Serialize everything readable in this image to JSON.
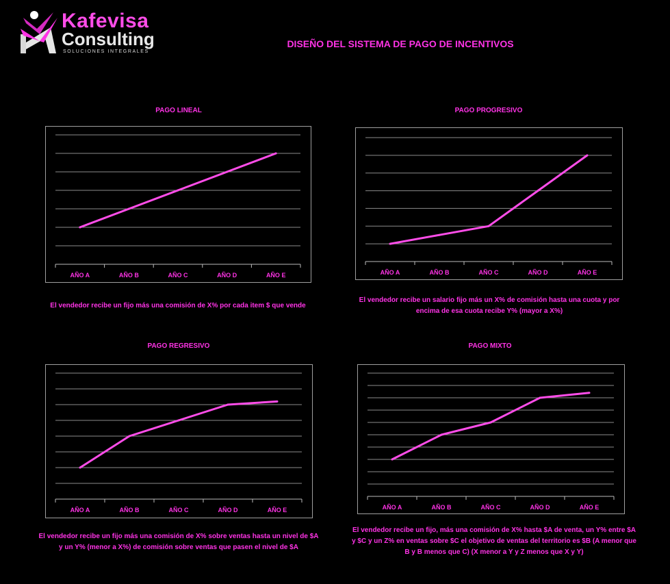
{
  "brand": {
    "name_top": "Kafevisa",
    "name_bottom": "Consulting",
    "tagline": "SOLUCIONES INTEGRALES"
  },
  "page_title": "DISEÑO DEL SISTEMA DE PAGO DE INCENTIVOS",
  "colors": {
    "accent": "#ff33e6",
    "line": "#ff4de9",
    "grid": "#8c8c8c",
    "background": "#000000"
  },
  "charts": [
    {
      "title": "PAGO LINEAL",
      "description": "El vendedor recibe un fijo más una comisión de X% por cada item $ que vende"
    },
    {
      "title": "PAGO PROGRESIVO",
      "description": "El vendedor recibe un salario fijo más un X% de comisión hasta una cuota y por encima de esa cuota recibe Y% (mayor a X%)"
    },
    {
      "title": "PAGO REGRESIVO",
      "description": "El vendedor recibe un fijo más una comisión de X% sobre ventas hasta un nivel de $A y un Y% (menor a X%) de comisión sobre ventas que pasen el nivel de $A"
    },
    {
      "title": "PAGO MIXTO",
      "description": "El vendedor recibe un fijo, más una comisión de X% hasta $A de venta, un Y% entre $A y $C y un Z% en ventas sobre $C el objetivo de ventas del territorio es $B (A menor que B y B menos que C) (X menor a Y y Z menos que X y Y)"
    }
  ],
  "chart_data": [
    {
      "type": "line",
      "title": "PAGO LINEAL",
      "categories": [
        "AÑO A",
        "AÑO B",
        "AÑO C",
        "AÑO D",
        "AÑO E"
      ],
      "values": [
        2,
        3,
        4,
        5,
        6
      ],
      "ylim": [
        0,
        7
      ],
      "grid": true
    },
    {
      "type": "line",
      "title": "PAGO PROGRESIVO",
      "categories": [
        "AÑO A",
        "AÑO B",
        "AÑO C",
        "AÑO D",
        "AÑO E"
      ],
      "values": [
        1,
        1.5,
        2,
        4,
        6
      ],
      "ylim": [
        0,
        7
      ],
      "grid": true
    },
    {
      "type": "line",
      "title": "PAGO REGRESIVO",
      "categories": [
        "AÑO A",
        "AÑO B",
        "AÑO C",
        "AÑO D",
        "AÑO E"
      ],
      "values": [
        2,
        4,
        5,
        6,
        6.2
      ],
      "ylim": [
        0,
        8
      ],
      "grid": true
    },
    {
      "type": "line",
      "title": "PAGO MIXTO",
      "categories": [
        "AÑO A",
        "AÑO B",
        "AÑO C",
        "AÑO D",
        "AÑO E"
      ],
      "values": [
        3,
        5,
        6,
        8,
        8.4
      ],
      "ylim": [
        0,
        10
      ],
      "grid": true
    }
  ]
}
